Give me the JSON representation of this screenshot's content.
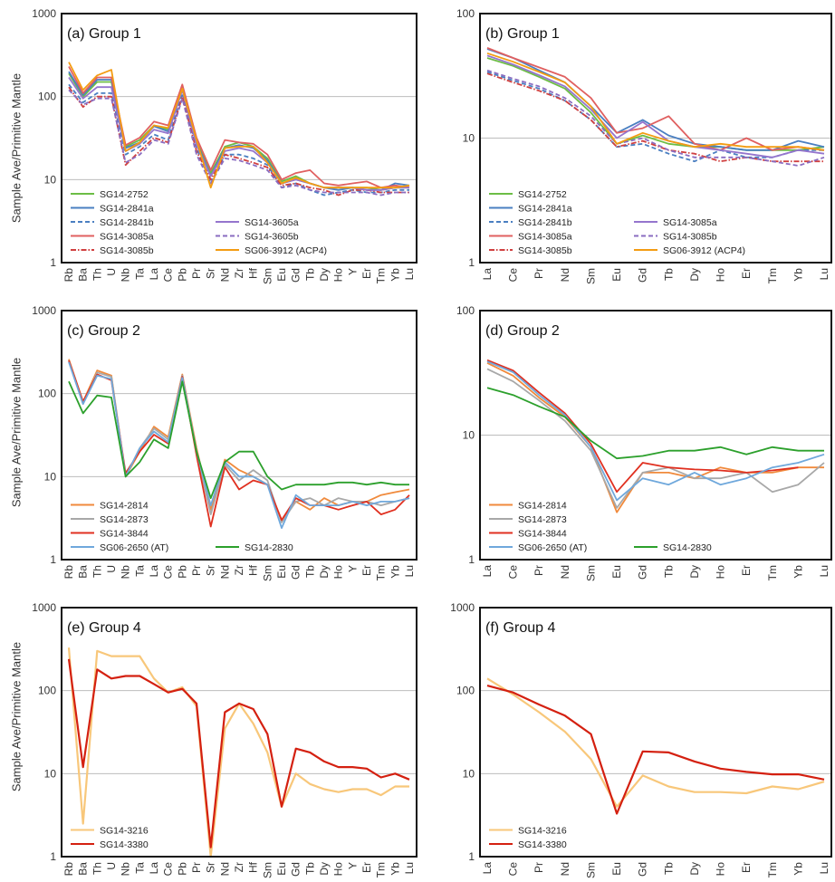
{
  "y_axis_label": "Sample Ave/Primitive Mantle",
  "chart_data": [
    {
      "type": "line",
      "panel": "(a)",
      "title": "Group 1",
      "ylabel": "Sample Ave/Primitive Mantle",
      "yscale": "log",
      "ylim": [
        1,
        1000
      ],
      "yticks": [
        "1",
        "10",
        "100",
        "1000"
      ],
      "categories": [
        "Rb",
        "Ba",
        "Th",
        "U",
        "Nb",
        "Ta",
        "La",
        "Ce",
        "Pb",
        "Pr",
        "Sr",
        "Nd",
        "Zr",
        "Hf",
        "Sm",
        "Eu",
        "Gd",
        "Tb",
        "Dy",
        "Ho",
        "Y",
        "Er",
        "Tm",
        "Yb",
        "Lu"
      ],
      "grid": true,
      "legend_position": "bottom-left",
      "series": [
        {
          "name": "SG14-2752",
          "color": "#6cbd45",
          "dash": "solid",
          "values": [
            190,
            100,
            150,
            150,
            25,
            30,
            45,
            40,
            130,
            30,
            12,
            25,
            28,
            25,
            18,
            9.5,
            11,
            9,
            8,
            8,
            8,
            8,
            7.5,
            8,
            8
          ]
        },
        {
          "name": "SG14-2841a",
          "color": "#4a7fc1",
          "dash": "solid",
          "values": [
            200,
            105,
            160,
            160,
            24,
            28,
            44,
            38,
            135,
            28,
            11,
            24,
            26,
            24,
            17,
            9,
            10,
            9,
            8,
            7.5,
            8,
            7.5,
            7.5,
            9,
            8.5
          ]
        },
        {
          "name": "SG14-2841b",
          "color": "#4a7fc1",
          "dash": "dash",
          "values": [
            140,
            85,
            110,
            110,
            20,
            25,
            35,
            30,
            110,
            24,
            9,
            20,
            20,
            18,
            15,
            8,
            9,
            7.5,
            6.5,
            7,
            7.5,
            7,
            7,
            7.5,
            7.5
          ]
        },
        {
          "name": "SG14-3085a",
          "color": "#e06060",
          "dash": "solid",
          "values": [
            230,
            110,
            170,
            170,
            26,
            32,
            50,
            45,
            140,
            32,
            13,
            30,
            28,
            27,
            20,
            10,
            12,
            13,
            9,
            8.5,
            9,
            9.5,
            8,
            8.5,
            8
          ]
        },
        {
          "name": "SG14-3085b",
          "color": "#d04040",
          "dash": "dashdot",
          "values": [
            130,
            75,
            100,
            100,
            15,
            22,
            32,
            28,
            100,
            22,
            10,
            20,
            18,
            16,
            14,
            8.5,
            9,
            8,
            7.5,
            6.5,
            7.5,
            7.5,
            7,
            7,
            7
          ]
        },
        {
          "name": "SG14-3605a",
          "color": "#9575cd",
          "dash": "solid",
          "values": [
            170,
            95,
            130,
            130,
            22,
            27,
            40,
            36,
            120,
            26,
            11,
            22,
            24,
            22,
            16,
            9,
            10,
            9,
            8,
            8,
            8,
            7.5,
            7.5,
            8,
            8
          ]
        },
        {
          "name": "SG14-3605b",
          "color": "#8a6cc0",
          "dash": "dash",
          "values": [
            120,
            80,
            95,
            95,
            16,
            20,
            30,
            27,
            95,
            20,
            9,
            18,
            17,
            15,
            13,
            8,
            8.5,
            7.5,
            7,
            7,
            7,
            7,
            6.5,
            7,
            7
          ]
        },
        {
          "name": "SG06-3912 (ACP4)",
          "color": "#f39c12",
          "dash": "solid",
          "values": [
            260,
            120,
            180,
            210,
            22,
            28,
            45,
            42,
            125,
            30,
            8,
            24,
            25,
            25,
            16,
            9,
            10.5,
            9,
            8,
            8,
            8,
            8,
            8,
            8,
            8.5
          ]
        }
      ]
    },
    {
      "type": "line",
      "panel": "(b)",
      "title": "Group 1",
      "ylabel": "",
      "yscale": "log",
      "ylim": [
        1,
        100
      ],
      "yticks": [
        "1",
        "10",
        "100"
      ],
      "categories": [
        "La",
        "Ce",
        "Pr",
        "Nd",
        "Sm",
        "Eu",
        "Gd",
        "Tb",
        "Dy",
        "Ho",
        "Er",
        "Tm",
        "Yb",
        "Lu"
      ],
      "grid": true,
      "legend_position": "bottom-left",
      "series": [
        {
          "name": "SG14-2752",
          "color": "#6cbd45",
          "dash": "solid",
          "values": [
            44,
            38,
            31,
            25,
            16,
            9,
            10.5,
            9,
            8.5,
            8.5,
            8,
            8,
            8,
            8.5
          ]
        },
        {
          "name": "SG14-2841a",
          "color": "#4a7fc1",
          "dash": "solid",
          "values": [
            52,
            44,
            35,
            28,
            18,
            11,
            14,
            10.5,
            9,
            8.5,
            8,
            8,
            9.5,
            8.5
          ]
        },
        {
          "name": "SG14-2841b",
          "color": "#4a7fc1",
          "dash": "dash",
          "values": [
            34,
            29,
            25,
            20,
            14,
            8.5,
            9,
            7.5,
            6.5,
            8,
            7,
            7,
            8,
            8
          ]
        },
        {
          "name": "SG14-3085a",
          "color": "#e06060",
          "dash": "solid",
          "values": [
            53,
            44,
            37,
            31,
            21,
            11,
            12,
            15,
            9,
            8,
            10,
            8,
            8.5,
            8
          ]
        },
        {
          "name": "SG14-3085b",
          "color": "#d04040",
          "dash": "dashdot",
          "values": [
            33,
            28,
            24,
            20,
            14,
            8.5,
            9.5,
            8,
            7.5,
            6.5,
            7,
            6.5,
            6.5,
            6.5
          ]
        },
        {
          "name": "SG14-3085a",
          "color": "#9575cd",
          "dash": "solid",
          "values": [
            46,
            39,
            32,
            26,
            17,
            10,
            13.5,
            9.5,
            8.5,
            8,
            7.5,
            7,
            8,
            7.5
          ]
        },
        {
          "name": "SG14-3085b",
          "color": "#8a6cc0",
          "dash": "dash",
          "values": [
            35,
            30,
            26,
            21,
            15,
            9,
            10,
            8,
            7,
            7,
            7,
            6.5,
            6,
            7
          ]
        },
        {
          "name": "SG06-3912 (ACP4)",
          "color": "#f39c12",
          "dash": "solid",
          "values": [
            48,
            41,
            34,
            28,
            18,
            9,
            11,
            9.5,
            8.5,
            9,
            8.5,
            8.5,
            8.5,
            8
          ]
        }
      ]
    },
    {
      "type": "line",
      "panel": "(c)",
      "title": "Group 2",
      "ylabel": "Sample Ave/Primitive Mantle",
      "yscale": "log",
      "ylim": [
        1,
        1000
      ],
      "yticks": [
        "1",
        "10",
        "100",
        "1000"
      ],
      "categories": [
        "Rb",
        "Ba",
        "Th",
        "U",
        "Nb",
        "Ta",
        "La",
        "Ce",
        "Pb",
        "Pr",
        "Sr",
        "Nd",
        "Zr",
        "Hf",
        "Sm",
        "Eu",
        "Gd",
        "Tb",
        "Dy",
        "Ho",
        "Y",
        "Er",
        "Tm",
        "Yb",
        "Lu"
      ],
      "grid": true,
      "legend_position": "bottom-left",
      "series": [
        {
          "name": "SG14-2814",
          "color": "#f08a3c",
          "dash": "solid",
          "values": [
            260,
            80,
            190,
            165,
            10,
            20,
            40,
            30,
            170,
            22,
            4,
            16,
            12,
            10,
            8,
            3,
            5,
            4,
            5.5,
            4.5,
            5,
            5,
            6,
            6.5,
            7
          ]
        },
        {
          "name": "SG14-2873",
          "color": "#a8a8a8",
          "dash": "solid",
          "values": [
            250,
            75,
            180,
            160,
            10,
            22,
            38,
            28,
            165,
            20,
            3.5,
            14,
            9,
            12,
            9,
            2.8,
            5,
            5.5,
            4.5,
            5.5,
            5,
            5,
            4.5,
            5,
            5.5
          ]
        },
        {
          "name": "SG14-3844",
          "color": "#e03020",
          "dash": "solid",
          "values": [
            250,
            80,
            170,
            145,
            11,
            20,
            32,
            25,
            160,
            18,
            2.5,
            13,
            7,
            9,
            8,
            3,
            5.5,
            4.5,
            4.5,
            4,
            4.5,
            5,
            3.5,
            4,
            6
          ]
        },
        {
          "name": "SG06-2650 (AT)",
          "color": "#6fa8dc",
          "dash": "solid",
          "values": [
            240,
            75,
            165,
            150,
            10,
            22,
            35,
            26,
            155,
            20,
            4.5,
            15,
            10,
            10,
            8,
            2.4,
            6,
            4.5,
            4.5,
            4.5,
            5,
            4.5,
            5,
            5,
            5.5
          ]
        },
        {
          "name": "SG14-2830",
          "color": "#2ca02c",
          "dash": "solid",
          "values": [
            140,
            58,
            95,
            90,
            10,
            15,
            28,
            22,
            140,
            20,
            5.5,
            15,
            20,
            20,
            10,
            7,
            8,
            8,
            8,
            8.5,
            8.5,
            8,
            8.5,
            8,
            8
          ]
        }
      ]
    },
    {
      "type": "line",
      "panel": "(d)",
      "title": "Group 2",
      "ylabel": "",
      "yscale": "log",
      "ylim": [
        1,
        100
      ],
      "yticks": [
        "1",
        "10",
        "100"
      ],
      "categories": [
        "La",
        "Ce",
        "Pr",
        "Nd",
        "Sm",
        "Eu",
        "Gd",
        "Tb",
        "Dy",
        "Ho",
        "Er",
        "Tm",
        "Yb",
        "Lu"
      ],
      "grid": true,
      "legend_position": "bottom-left",
      "series": [
        {
          "name": "SG14-2814",
          "color": "#f08a3c",
          "dash": "solid",
          "values": [
            38,
            30,
            20,
            14,
            8,
            2.4,
            5,
            5,
            4.5,
            5.5,
            5,
            5,
            5.5,
            5.5
          ]
        },
        {
          "name": "SG14-2873",
          "color": "#a8a8a8",
          "dash": "solid",
          "values": [
            34,
            27,
            19,
            13,
            7.5,
            2.6,
            5,
            5.5,
            4.5,
            4.5,
            5,
            3.5,
            4,
            6
          ]
        },
        {
          "name": "SG14-3844",
          "color": "#e03020",
          "dash": "solid",
          "values": [
            40,
            33,
            22,
            15,
            8.5,
            3.5,
            6,
            5.5,
            5.3,
            5.2,
            5,
            5.2,
            5.5,
            null
          ]
        },
        {
          "name": "SG06-2650 (AT)",
          "color": "#6fa8dc",
          "dash": "solid",
          "values": [
            39,
            32,
            21,
            14.5,
            8,
            3,
            4.5,
            4,
            5,
            4,
            4.5,
            5.5,
            6,
            7
          ]
        },
        {
          "name": "SG14-2830",
          "color": "#2ca02c",
          "dash": "solid",
          "values": [
            24,
            21,
            17,
            14,
            9,
            6.5,
            6.8,
            7.5,
            7.5,
            8,
            7,
            8,
            7.5,
            7.5
          ]
        }
      ]
    },
    {
      "type": "line",
      "panel": "(e)",
      "title": "Group 4",
      "ylabel": "Sample Ave/Primitive Mantle",
      "yscale": "log",
      "ylim": [
        1,
        1000
      ],
      "yticks": [
        "1",
        "10",
        "100",
        "1000"
      ],
      "categories": [
        "Rb",
        "Ba",
        "Th",
        "U",
        "Nb",
        "Ta",
        "La",
        "Ce",
        "Pb",
        "Pr",
        "Sr",
        "Nd",
        "Zr",
        "Hf",
        "Sm",
        "Eu",
        "Gd",
        "Tb",
        "Dy",
        "Ho",
        "Y",
        "Er",
        "Tm",
        "Yb",
        "Lu"
      ],
      "grid": true,
      "legend_position": "bottom-left",
      "series": [
        {
          "name": "SG14-3216",
          "color": "#f8c77a",
          "dash": "solid",
          "values": [
            330,
            2.5,
            300,
            260,
            260,
            260,
            140,
            95,
            110,
            65,
            1,
            35,
            70,
            40,
            18,
            4,
            10,
            7.5,
            6.5,
            6,
            6.5,
            6.5,
            5.5,
            7,
            7
          ]
        },
        {
          "name": "SG14-3380",
          "color": "#d42010",
          "dash": "solid",
          "values": [
            240,
            12,
            180,
            140,
            150,
            150,
            120,
            95,
            105,
            70,
            1.3,
            55,
            70,
            60,
            30,
            4,
            20,
            18,
            14,
            12,
            12,
            11.5,
            9,
            10,
            8.5
          ]
        }
      ]
    },
    {
      "type": "line",
      "panel": "(f)",
      "title": "Group 4",
      "ylabel": "",
      "yscale": "log",
      "ylim": [
        1,
        1000
      ],
      "yticks": [
        "1",
        "10",
        "100",
        "1000"
      ],
      "categories": [
        "La",
        "Ce",
        "Pr",
        "Nd",
        "Sm",
        "Eu",
        "Gd",
        "Tb",
        "Dy",
        "Ho",
        "Er",
        "Tm",
        "Yb",
        "Lu"
      ],
      "grid": true,
      "legend_position": "bottom-left",
      "series": [
        {
          "name": "SG14-3216",
          "color": "#f8c77a",
          "dash": "solid",
          "values": [
            140,
            90,
            55,
            32,
            15,
            4,
            9.5,
            7,
            6,
            6,
            5.8,
            7,
            6.5,
            8
          ]
        },
        {
          "name": "SG14-3380",
          "color": "#d42010",
          "dash": "solid",
          "values": [
            115,
            95,
            68,
            50,
            30,
            3.3,
            18.5,
            18,
            14,
            11.5,
            10.5,
            9.8,
            9.8,
            8.5
          ]
        }
      ]
    }
  ]
}
